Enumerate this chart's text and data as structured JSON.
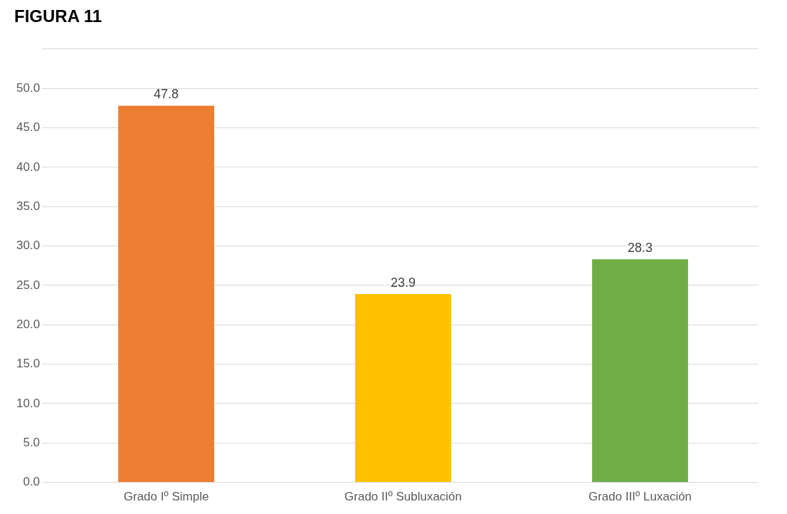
{
  "chart_data": {
    "type": "bar",
    "title": "FIGURA 11",
    "categories": [
      "Grado Iº Simple",
      "Grado IIº Subluxación",
      "Grado IIIº Luxación"
    ],
    "values": [
      47.8,
      23.9,
      28.3
    ],
    "colors": [
      "#ed7d31",
      "#ffc000",
      "#70ad47"
    ],
    "ylim": [
      0,
      55
    ],
    "yticks": [
      {
        "value": 0,
        "label": "0.0"
      },
      {
        "value": 5,
        "label": "5.0"
      },
      {
        "value": 10,
        "label": "10.0"
      },
      {
        "value": 15,
        "label": "15.0"
      },
      {
        "value": 20,
        "label": "20.0"
      },
      {
        "value": 25,
        "label": "25.0"
      },
      {
        "value": 30,
        "label": "30.0"
      },
      {
        "value": 35,
        "label": "35.0"
      },
      {
        "value": 40,
        "label": "40.0"
      },
      {
        "value": 45,
        "label": "45.0"
      },
      {
        "value": 50,
        "label": "50.0"
      },
      {
        "value": 55,
        "label": null
      }
    ],
    "grid": "y",
    "data_labels": true
  }
}
